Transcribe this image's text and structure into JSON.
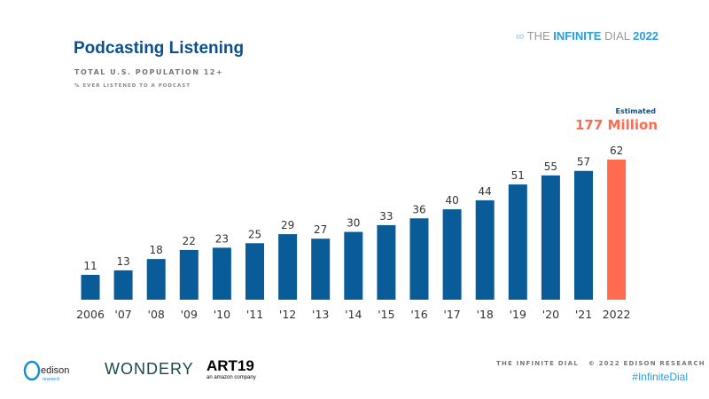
{
  "header": {
    "brand_prefix": "THE ",
    "brand_bold": "INFINITE",
    "brand_mid": " DIAL ",
    "brand_year": "2022"
  },
  "chart_data": {
    "type": "bar",
    "title": "Podcasting Listening",
    "subtitle": "TOTAL U.S. POPULATION 12+",
    "ylabel": "% EVER LISTENED TO A PODCAST",
    "categories": [
      "2006",
      "'07",
      "'08",
      "'09",
      "'10",
      "'11",
      "'12",
      "'13",
      "'14",
      "'15",
      "'16",
      "'17",
      "'18",
      "'19",
      "'20",
      "'21",
      "2022"
    ],
    "values": [
      11,
      13,
      18,
      22,
      23,
      25,
      29,
      27,
      30,
      33,
      36,
      40,
      44,
      51,
      55,
      57,
      62
    ],
    "colors": {
      "bar": "#0a5c99",
      "highlight": "#ff6b4f"
    },
    "highlight_index": 16,
    "annotation": {
      "label": "Estimated",
      "value": "177 Million"
    },
    "ylim": [
      0,
      70
    ],
    "grid": false
  },
  "footer": {
    "copyright": "THE INFINITE DIAL   © 2022 EDISON RESEARCH",
    "hashtag": "#InfiniteDial",
    "logos": {
      "edison": "edison research",
      "wondery": "WONDERY",
      "art19": "ART19",
      "art19_sub": "an amazon company"
    }
  }
}
